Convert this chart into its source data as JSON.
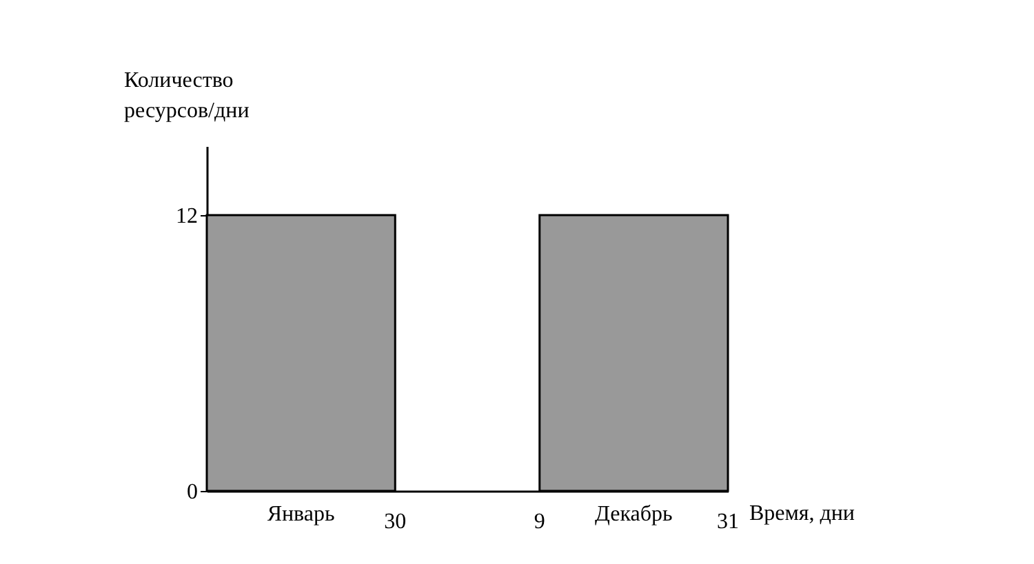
{
  "chart_data": {
    "type": "bar",
    "categories": [
      "Январь",
      "Декабрь"
    ],
    "values": [
      12,
      12
    ],
    "color": "#999999",
    "ylabel": "Количество\nресурсов/дни",
    "xlabel": "Время, дни",
    "ylim": [
      0,
      15
    ],
    "yticks": [
      0,
      12
    ],
    "grid": false,
    "annotations": [
      "30",
      "9",
      "31"
    ]
  }
}
